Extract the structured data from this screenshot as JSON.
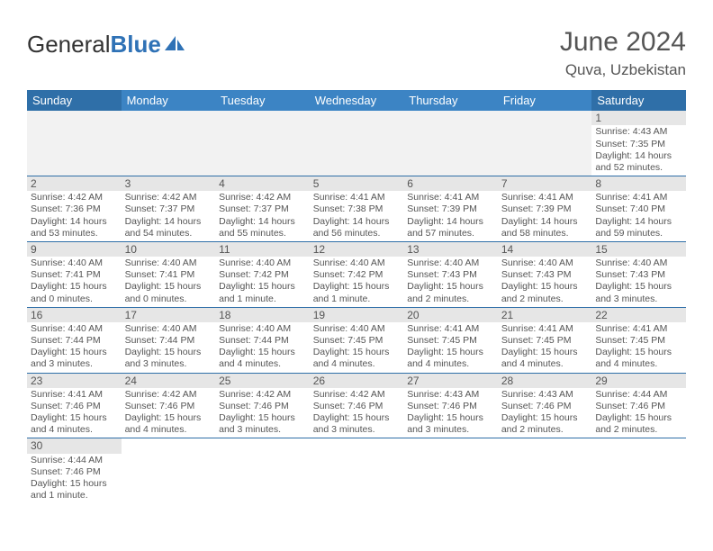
{
  "logo": {
    "part1": "General",
    "part2": "Blue"
  },
  "title": "June 2024",
  "location": "Quva, Uzbekistan",
  "colors": {
    "header_blue": "#3c84c4",
    "header_blue_weekend": "#2f6fa8",
    "daynum_bg": "#e6e6e6",
    "text": "#555555"
  },
  "weekdays": [
    "Sunday",
    "Monday",
    "Tuesday",
    "Wednesday",
    "Thursday",
    "Friday",
    "Saturday"
  ],
  "grid": [
    [
      null,
      null,
      null,
      null,
      null,
      null,
      {
        "n": "1",
        "sr": "4:43 AM",
        "ss": "7:35 PM",
        "dl": "14 hours and 52 minutes."
      }
    ],
    [
      {
        "n": "2",
        "sr": "4:42 AM",
        "ss": "7:36 PM",
        "dl": "14 hours and 53 minutes."
      },
      {
        "n": "3",
        "sr": "4:42 AM",
        "ss": "7:37 PM",
        "dl": "14 hours and 54 minutes."
      },
      {
        "n": "4",
        "sr": "4:42 AM",
        "ss": "7:37 PM",
        "dl": "14 hours and 55 minutes."
      },
      {
        "n": "5",
        "sr": "4:41 AM",
        "ss": "7:38 PM",
        "dl": "14 hours and 56 minutes."
      },
      {
        "n": "6",
        "sr": "4:41 AM",
        "ss": "7:39 PM",
        "dl": "14 hours and 57 minutes."
      },
      {
        "n": "7",
        "sr": "4:41 AM",
        "ss": "7:39 PM",
        "dl": "14 hours and 58 minutes."
      },
      {
        "n": "8",
        "sr": "4:41 AM",
        "ss": "7:40 PM",
        "dl": "14 hours and 59 minutes."
      }
    ],
    [
      {
        "n": "9",
        "sr": "4:40 AM",
        "ss": "7:41 PM",
        "dl": "15 hours and 0 minutes."
      },
      {
        "n": "10",
        "sr": "4:40 AM",
        "ss": "7:41 PM",
        "dl": "15 hours and 0 minutes."
      },
      {
        "n": "11",
        "sr": "4:40 AM",
        "ss": "7:42 PM",
        "dl": "15 hours and 1 minute."
      },
      {
        "n": "12",
        "sr": "4:40 AM",
        "ss": "7:42 PM",
        "dl": "15 hours and 1 minute."
      },
      {
        "n": "13",
        "sr": "4:40 AM",
        "ss": "7:43 PM",
        "dl": "15 hours and 2 minutes."
      },
      {
        "n": "14",
        "sr": "4:40 AM",
        "ss": "7:43 PM",
        "dl": "15 hours and 2 minutes."
      },
      {
        "n": "15",
        "sr": "4:40 AM",
        "ss": "7:43 PM",
        "dl": "15 hours and 3 minutes."
      }
    ],
    [
      {
        "n": "16",
        "sr": "4:40 AM",
        "ss": "7:44 PM",
        "dl": "15 hours and 3 minutes."
      },
      {
        "n": "17",
        "sr": "4:40 AM",
        "ss": "7:44 PM",
        "dl": "15 hours and 3 minutes."
      },
      {
        "n": "18",
        "sr": "4:40 AM",
        "ss": "7:44 PM",
        "dl": "15 hours and 4 minutes."
      },
      {
        "n": "19",
        "sr": "4:40 AM",
        "ss": "7:45 PM",
        "dl": "15 hours and 4 minutes."
      },
      {
        "n": "20",
        "sr": "4:41 AM",
        "ss": "7:45 PM",
        "dl": "15 hours and 4 minutes."
      },
      {
        "n": "21",
        "sr": "4:41 AM",
        "ss": "7:45 PM",
        "dl": "15 hours and 4 minutes."
      },
      {
        "n": "22",
        "sr": "4:41 AM",
        "ss": "7:45 PM",
        "dl": "15 hours and 4 minutes."
      }
    ],
    [
      {
        "n": "23",
        "sr": "4:41 AM",
        "ss": "7:46 PM",
        "dl": "15 hours and 4 minutes."
      },
      {
        "n": "24",
        "sr": "4:42 AM",
        "ss": "7:46 PM",
        "dl": "15 hours and 4 minutes."
      },
      {
        "n": "25",
        "sr": "4:42 AM",
        "ss": "7:46 PM",
        "dl": "15 hours and 3 minutes."
      },
      {
        "n": "26",
        "sr": "4:42 AM",
        "ss": "7:46 PM",
        "dl": "15 hours and 3 minutes."
      },
      {
        "n": "27",
        "sr": "4:43 AM",
        "ss": "7:46 PM",
        "dl": "15 hours and 3 minutes."
      },
      {
        "n": "28",
        "sr": "4:43 AM",
        "ss": "7:46 PM",
        "dl": "15 hours and 2 minutes."
      },
      {
        "n": "29",
        "sr": "4:44 AM",
        "ss": "7:46 PM",
        "dl": "15 hours and 2 minutes."
      }
    ],
    [
      {
        "n": "30",
        "sr": "4:44 AM",
        "ss": "7:46 PM",
        "dl": "15 hours and 1 minute."
      },
      null,
      null,
      null,
      null,
      null,
      null
    ]
  ],
  "labels": {
    "sunrise": "Sunrise:",
    "sunset": "Sunset:",
    "daylight": "Daylight:"
  }
}
